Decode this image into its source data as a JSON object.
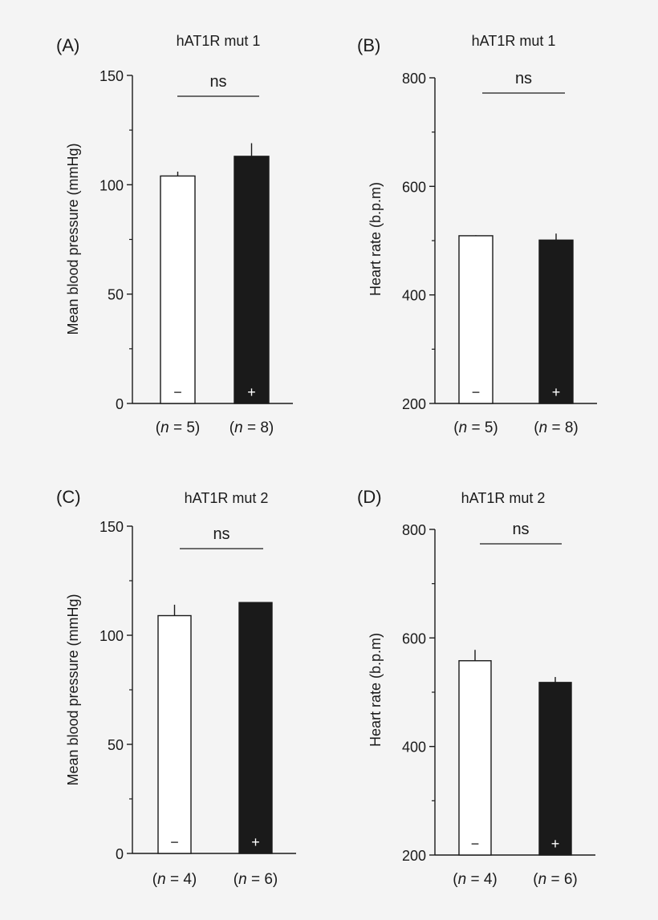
{
  "colors": {
    "background": "#f4f4f4",
    "ink": "#1a1a1a",
    "bar_minus": "#ffffff",
    "bar_plus": "#1a1a1a"
  },
  "chart_data": [
    {
      "type": "bar",
      "panel_label": "(A)",
      "title": "hAT1R mut 1",
      "ylabel": "Mean blood pressure (mmHg)",
      "ylim": [
        0,
        150
      ],
      "yticks": [
        0,
        50,
        100,
        150
      ],
      "categories": [
        "(n = 5)",
        "(n = 8)"
      ],
      "bar_marks": [
        "−",
        "+"
      ],
      "values": [
        104,
        113
      ],
      "errors": [
        2,
        6
      ],
      "significance": "ns"
    },
    {
      "type": "bar",
      "panel_label": "(B)",
      "title": "hAT1R mut 1",
      "ylabel": "Heart rate (b.p.m)",
      "ylim": [
        200,
        800
      ],
      "yticks": [
        200,
        400,
        600,
        800
      ],
      "categories": [
        "(n = 5)",
        "(n = 8)"
      ],
      "bar_marks": [
        "−",
        "+"
      ],
      "values": [
        509,
        501
      ],
      "errors": [
        1,
        12
      ],
      "significance": "ns"
    },
    {
      "type": "bar",
      "panel_label": "(C)",
      "title": "hAT1R mut 2",
      "ylabel": "Mean blood pressure (mmHg)",
      "ylim": [
        0,
        150
      ],
      "yticks": [
        0,
        50,
        100,
        150
      ],
      "categories": [
        "(n = 4)",
        "(n = 6)"
      ],
      "bar_marks": [
        "−",
        "+"
      ],
      "values": [
        109,
        115
      ],
      "errors": [
        5,
        0
      ],
      "significance": "ns"
    },
    {
      "type": "bar",
      "panel_label": "(D)",
      "title": "hAT1R mut 2",
      "ylabel": "Heart rate (b.p.m)",
      "ylim": [
        200,
        800
      ],
      "yticks": [
        200,
        400,
        600,
        800
      ],
      "categories": [
        "(n = 4)",
        "(n = 6)"
      ],
      "bar_marks": [
        "−",
        "+"
      ],
      "values": [
        558,
        518
      ],
      "errors": [
        20,
        10
      ],
      "significance": "ns"
    }
  ]
}
